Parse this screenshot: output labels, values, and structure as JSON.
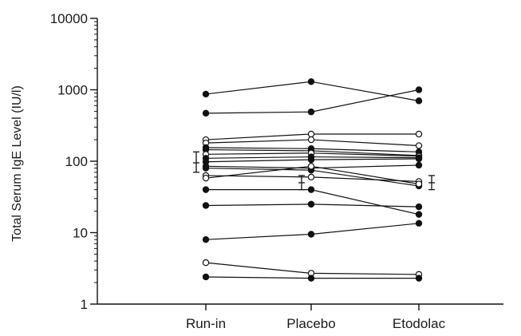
{
  "chart_data": {
    "type": "line",
    "title": "",
    "xlabel": "",
    "ylabel": "Total Serum IgE Level (IU/l)",
    "y_scale": "log",
    "ylim": [
      1,
      10000
    ],
    "y_ticks": [
      1,
      10,
      100,
      1000,
      10000
    ],
    "y_tick_labels": [
      "1",
      "10",
      "100",
      "1000",
      "10000"
    ],
    "categories": [
      "Run-in",
      "Placebo",
      "Etodolac"
    ],
    "grid": false,
    "legend": "none",
    "marker_styles": {
      "filled": "#111111",
      "open": "#ffffff"
    },
    "subjects": [
      {
        "marker": "filled",
        "values": [
          870,
          1300,
          700
        ]
      },
      {
        "marker": "filled",
        "values": [
          470,
          490,
          1000
        ]
      },
      {
        "marker": "open",
        "values": [
          200,
          240,
          240
        ]
      },
      {
        "marker": "open",
        "values": [
          180,
          200,
          165
        ]
      },
      {
        "marker": "filled",
        "values": [
          155,
          150,
          135
        ]
      },
      {
        "marker": "filled",
        "values": [
          145,
          140,
          120
        ]
      },
      {
        "marker": "open",
        "values": [
          125,
          130,
          118
        ]
      },
      {
        "marker": "filled",
        "values": [
          110,
          115,
          112
        ]
      },
      {
        "marker": "filled",
        "values": [
          98,
          105,
          108
        ]
      },
      {
        "marker": "filled",
        "values": [
          85,
          80,
          88
        ]
      },
      {
        "marker": "filled",
        "values": [
          80,
          75,
          45
        ]
      },
      {
        "marker": "open",
        "values": [
          63,
          60,
          52
        ]
      },
      {
        "marker": "open",
        "values": [
          58,
          85,
          48
        ]
      },
      {
        "marker": "filled",
        "values": [
          40,
          40,
          18
        ]
      },
      {
        "marker": "filled",
        "values": [
          24,
          25,
          23
        ]
      },
      {
        "marker": "filled",
        "values": [
          8,
          9.5,
          13.5
        ]
      },
      {
        "marker": "open",
        "values": [
          3.8,
          2.7,
          2.6
        ]
      },
      {
        "marker": "filled",
        "values": [
          2.4,
          2.3,
          2.3
        ]
      }
    ],
    "mean_error_bars": [
      {
        "category": "Run-in",
        "mean": 95,
        "lower": 70,
        "upper": 135
      },
      {
        "category": "Placebo",
        "mean": 50,
        "lower": 40,
        "upper": 63
      },
      {
        "category": "Etodolac",
        "mean": 50,
        "lower": 40,
        "upper": 63
      }
    ]
  }
}
